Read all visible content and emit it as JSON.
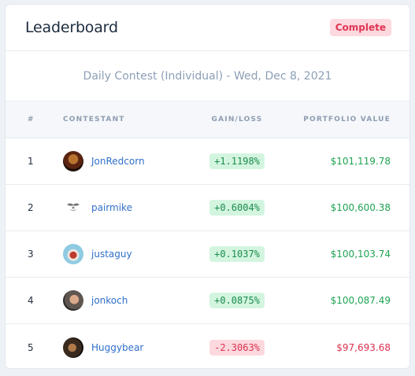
{
  "header": {
    "title": "Leaderboard",
    "status": "Complete"
  },
  "contest": {
    "title": "Daily Contest (Individual) - Wed, Dec 8, 2021"
  },
  "columns": {
    "rank": "#",
    "contestant": "CONTESTANT",
    "gain": "GAIN/LOSS",
    "value": "PORTFOLIO VALUE"
  },
  "rows": [
    {
      "rank": "1",
      "name": "JonRedcorn",
      "gain": "+1.1198%",
      "value": "$101,119.78",
      "trend": "up",
      "avatar_color": "#7a3b1c"
    },
    {
      "rank": "2",
      "name": "pairmike",
      "gain": "+0.6004%",
      "value": "$100,600.38",
      "trend": "up",
      "avatar_color": "#ffffff"
    },
    {
      "rank": "3",
      "name": "justaguy",
      "gain": "+0.1037%",
      "value": "$100,103.74",
      "trend": "up",
      "avatar_color": "#8ecbe3"
    },
    {
      "rank": "4",
      "name": "jonkoch",
      "gain": "+0.0875%",
      "value": "$100,087.49",
      "trend": "up",
      "avatar_color": "#6b6560"
    },
    {
      "rank": "5",
      "name": "Huggybear",
      "gain": "-2.3063%",
      "value": "$97,693.68",
      "trend": "down",
      "avatar_color": "#3a2a1e"
    }
  ]
}
